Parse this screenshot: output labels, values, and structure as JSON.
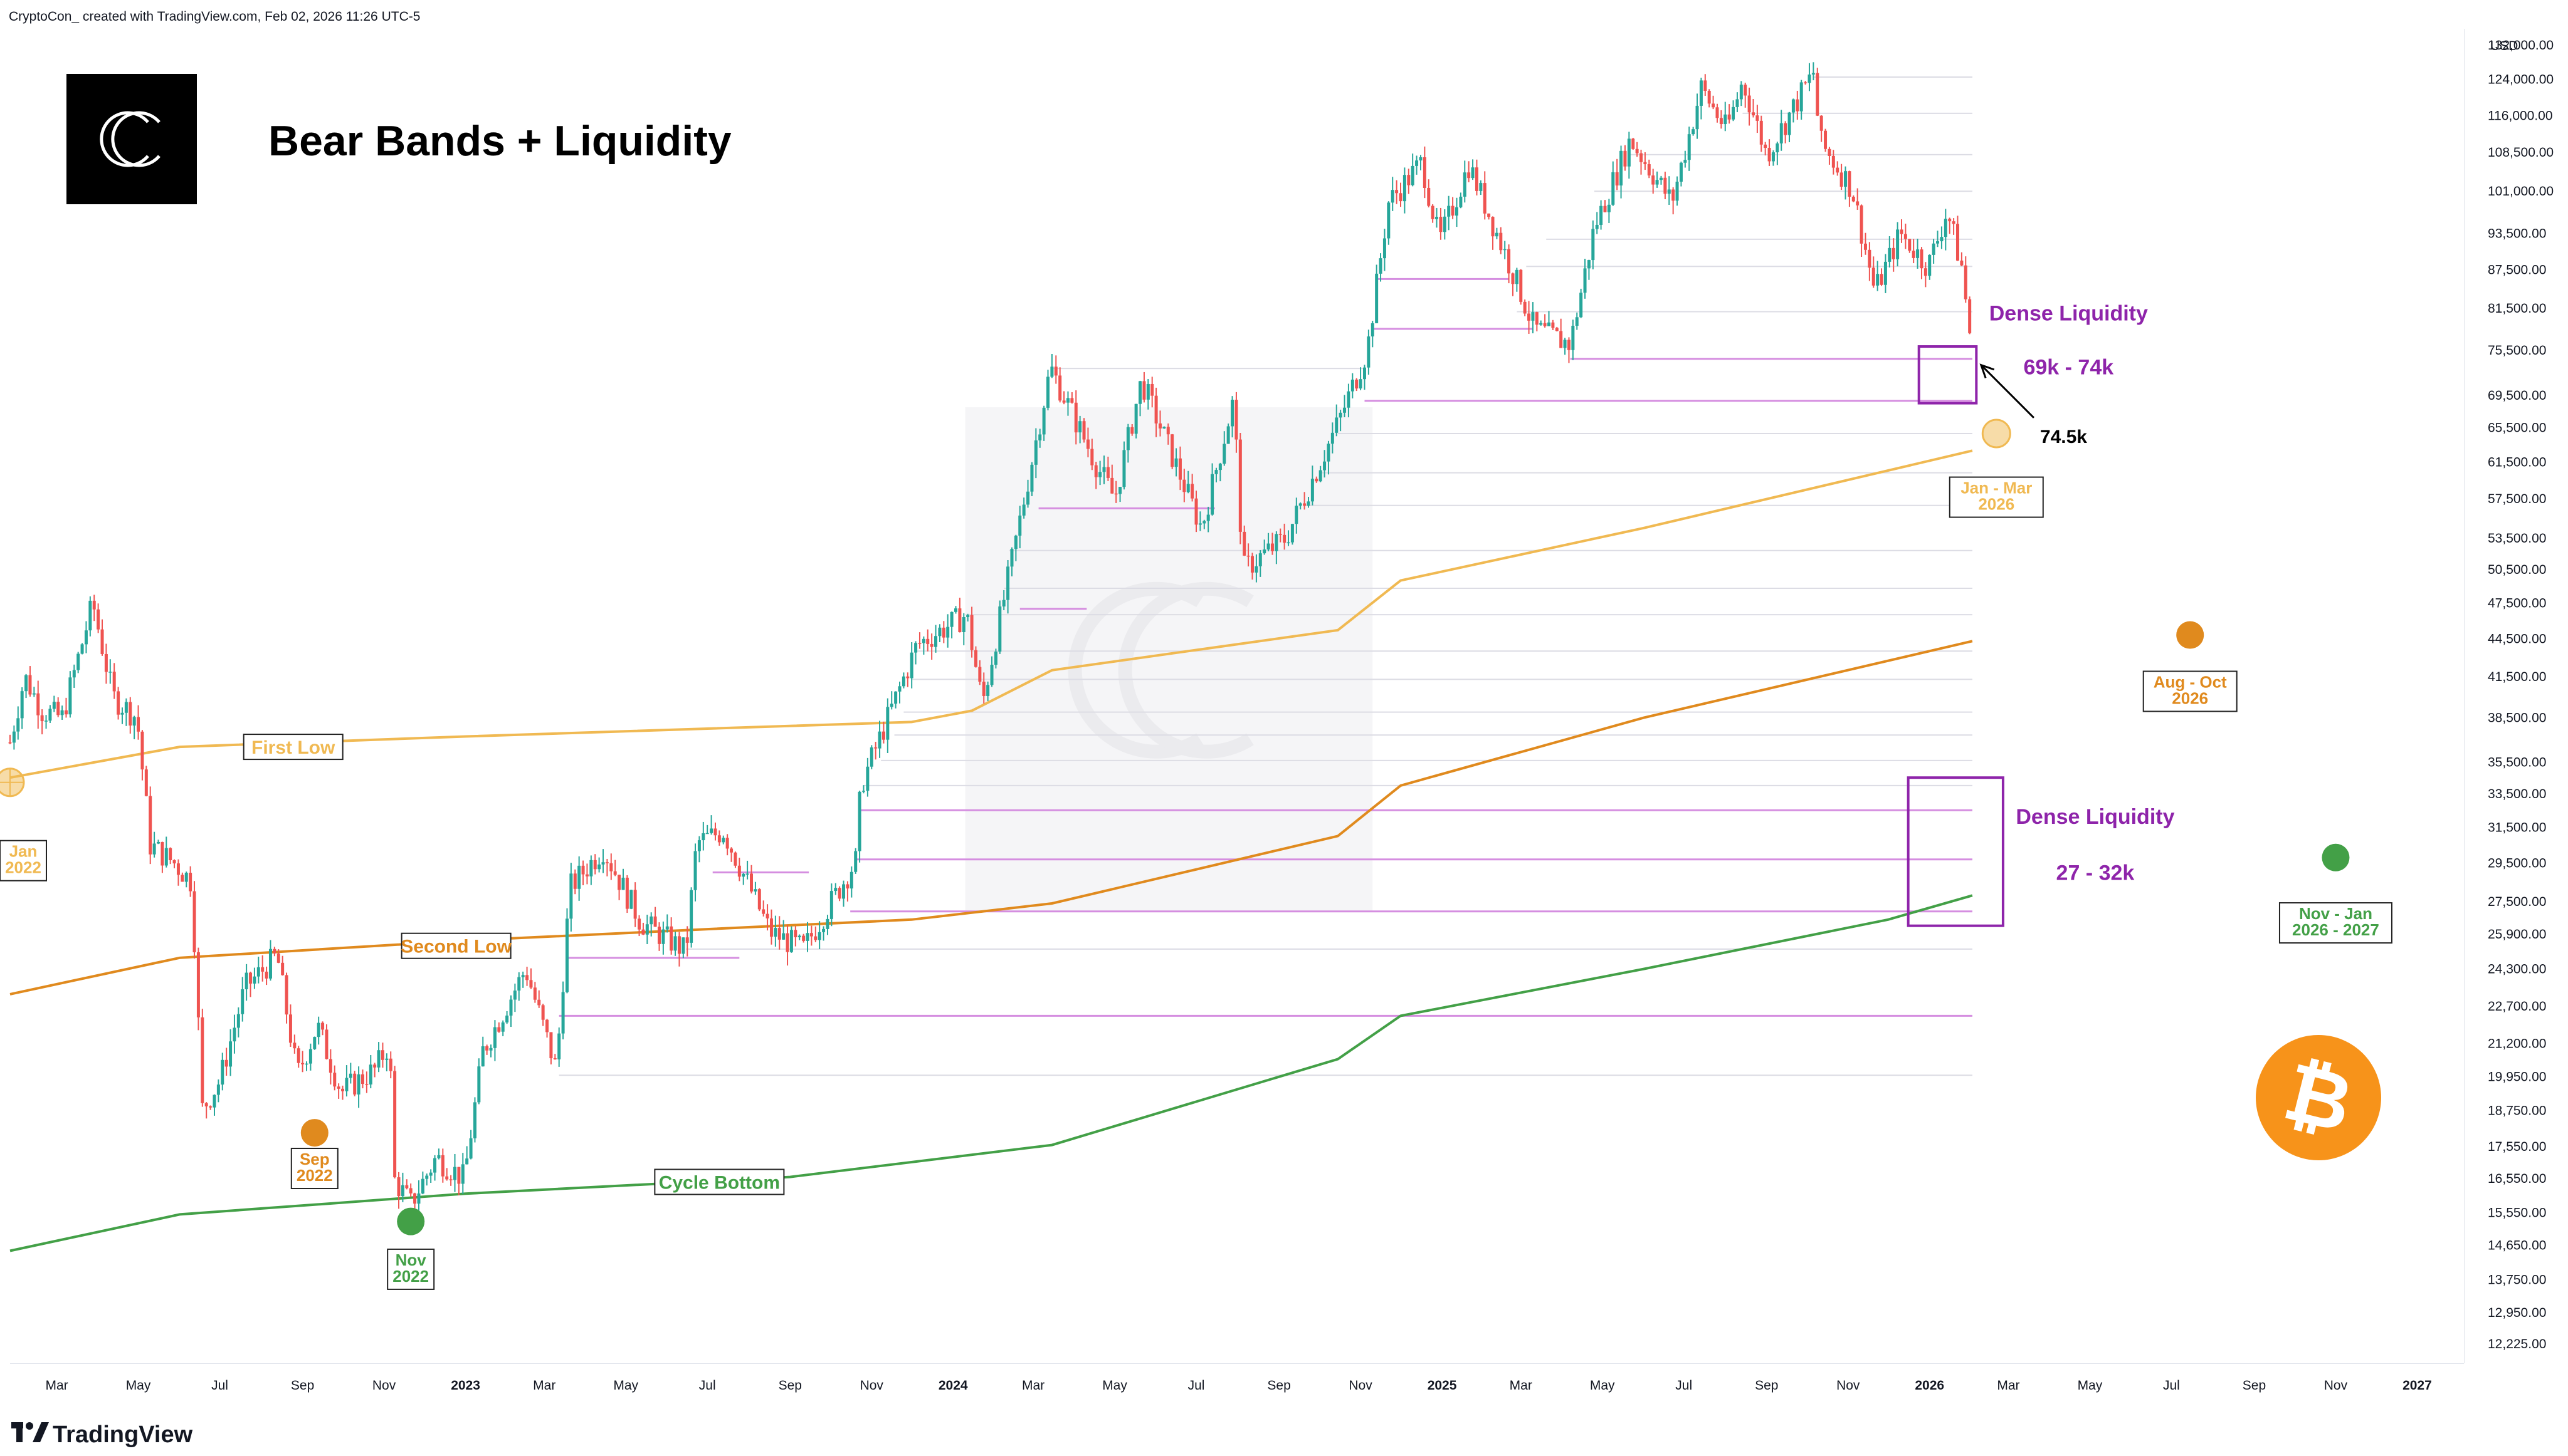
{
  "credit": "CryptoCon_ created with TradingView.com, Feb 02, 2026 11:26 UTC-5",
  "title": "Bear Bands + Liquidity",
  "brand": "TradingView",
  "currency": "USD",
  "colors": {
    "up": "#26a69a",
    "down": "#ef5350",
    "first_low": "#f0b952",
    "second_low": "#e08a1e",
    "cycle_bottom": "#43a047",
    "liquidity": "#d58ee0",
    "dense_box": "#8e24aa",
    "bitcoin": "#f7931a"
  },
  "chart_data": {
    "type": "line",
    "title": "Bear Bands + Liquidity",
    "price_scale": "log",
    "y_ticks": [
      12225,
      12950,
      13750,
      14650,
      15550,
      16550,
      17550,
      18750,
      19950,
      21200,
      22700,
      24300,
      25900,
      27500,
      29500,
      31500,
      33500,
      35500,
      38500,
      41500,
      44500,
      47500,
      50500,
      53500,
      57500,
      61500,
      65500,
      69500,
      75500,
      81500,
      87500,
      93500,
      101000,
      108500,
      116000,
      124000,
      132000
    ],
    "y_tick_labels": [
      "12,225.00",
      "12,950.00",
      "13,750.00",
      "14,650.00",
      "15,550.00",
      "16,550.00",
      "17,550.00",
      "18,750.00",
      "19,950.00",
      "21,200.00",
      "22,700.00",
      "24,300.00",
      "25,900.00",
      "27,500.00",
      "29,500.00",
      "31,500.00",
      "33,500.00",
      "35,500.00",
      "38,500.00",
      "41,500.00",
      "44,500.00",
      "47,500.00",
      "50,500.00",
      "53,500.00",
      "57,500.00",
      "61,500.00",
      "65,500.00",
      "69,500.00",
      "75,500.00",
      "81,500.00",
      "87,500.00",
      "93,500.00",
      "101,000.00",
      "108,500.00",
      "116,000.00",
      "124,000.00",
      "132,000.00"
    ],
    "ylim": [
      11800,
      136000
    ],
    "x_range": [
      "2022-01-25",
      "2027-02-05"
    ],
    "x_ticks": [
      {
        "date": "2022-03-01",
        "label": "Mar"
      },
      {
        "date": "2022-05-01",
        "label": "May"
      },
      {
        "date": "2022-07-01",
        "label": "Jul"
      },
      {
        "date": "2022-09-01",
        "label": "Sep"
      },
      {
        "date": "2022-11-01",
        "label": "Nov"
      },
      {
        "date": "2023-01-01",
        "label": "2023",
        "year": true
      },
      {
        "date": "2023-03-01",
        "label": "Mar"
      },
      {
        "date": "2023-05-01",
        "label": "May"
      },
      {
        "date": "2023-07-01",
        "label": "Jul"
      },
      {
        "date": "2023-09-01",
        "label": "Sep"
      },
      {
        "date": "2023-11-01",
        "label": "Nov"
      },
      {
        "date": "2024-01-01",
        "label": "2024",
        "year": true
      },
      {
        "date": "2024-03-01",
        "label": "Mar"
      },
      {
        "date": "2024-05-01",
        "label": "May"
      },
      {
        "date": "2024-07-01",
        "label": "Jul"
      },
      {
        "date": "2024-09-01",
        "label": "Sep"
      },
      {
        "date": "2024-11-01",
        "label": "Nov"
      },
      {
        "date": "2025-01-01",
        "label": "2025",
        "year": true
      },
      {
        "date": "2025-03-01",
        "label": "Mar"
      },
      {
        "date": "2025-05-01",
        "label": "May"
      },
      {
        "date": "2025-07-01",
        "label": "Jul"
      },
      {
        "date": "2025-09-01",
        "label": "Sep"
      },
      {
        "date": "2025-11-01",
        "label": "Nov"
      },
      {
        "date": "2026-01-01",
        "label": "2026",
        "year": true
      },
      {
        "date": "2026-03-01",
        "label": "Mar"
      },
      {
        "date": "2026-05-01",
        "label": "May"
      },
      {
        "date": "2026-07-01",
        "label": "Jul"
      },
      {
        "date": "2026-09-01",
        "label": "Sep"
      },
      {
        "date": "2026-11-01",
        "label": "Nov"
      },
      {
        "date": "2027-01-01",
        "label": "2027",
        "year": true
      }
    ],
    "price_series": {
      "name": "BTC",
      "points": [
        [
          "2022-01-25",
          36800
        ],
        [
          "2022-02-05",
          41500
        ],
        [
          "2022-02-18",
          39000
        ],
        [
          "2022-03-05",
          38500
        ],
        [
          "2022-03-28",
          47500
        ],
        [
          "2022-04-12",
          40000
        ],
        [
          "2022-04-30",
          38500
        ],
        [
          "2022-05-10",
          30500
        ],
        [
          "2022-05-28",
          29500
        ],
        [
          "2022-06-10",
          28500
        ],
        [
          "2022-06-18",
          18800
        ],
        [
          "2022-07-01",
          19800
        ],
        [
          "2022-07-20",
          23500
        ],
        [
          "2022-08-13",
          24900
        ],
        [
          "2022-08-28",
          20000
        ],
        [
          "2022-09-12",
          21900
        ],
        [
          "2022-09-30",
          19400
        ],
        [
          "2022-10-25",
          20200
        ],
        [
          "2022-11-05",
          21200
        ],
        [
          "2022-11-09",
          16500
        ],
        [
          "2022-11-21",
          15800
        ],
        [
          "2022-12-10",
          17200
        ],
        [
          "2022-12-31",
          16550
        ],
        [
          "2023-01-14",
          20900
        ],
        [
          "2023-02-15",
          24300
        ],
        [
          "2023-03-10",
          20200
        ],
        [
          "2023-03-20",
          28200
        ],
        [
          "2023-04-14",
          30300
        ],
        [
          "2023-05-12",
          26500
        ],
        [
          "2023-06-15",
          25100
        ],
        [
          "2023-06-23",
          30600
        ],
        [
          "2023-07-13",
          31300
        ],
        [
          "2023-08-17",
          26000
        ],
        [
          "2023-09-11",
          25200
        ],
        [
          "2023-10-20",
          29600
        ],
        [
          "2023-10-24",
          34000
        ],
        [
          "2023-12-05",
          44000
        ],
        [
          "2024-01-11",
          46500
        ],
        [
          "2024-01-23",
          39500
        ],
        [
          "2024-02-15",
          52000
        ],
        [
          "2024-03-14",
          73100
        ],
        [
          "2024-04-17",
          61300
        ],
        [
          "2024-05-01",
          57500
        ],
        [
          "2024-05-21",
          71400
        ],
        [
          "2024-07-05",
          54500
        ],
        [
          "2024-07-29",
          69000
        ],
        [
          "2024-08-05",
          50500
        ],
        [
          "2024-09-06",
          53500
        ],
        [
          "2024-10-15",
          66000
        ],
        [
          "2024-11-06",
          75500
        ],
        [
          "2024-11-22",
          99000
        ],
        [
          "2024-12-17",
          106500
        ],
        [
          "2024-12-30",
          92000
        ],
        [
          "2025-01-21",
          106000
        ],
        [
          "2025-02-25",
          86000
        ],
        [
          "2025-03-11",
          78500
        ],
        [
          "2025-04-07",
          76300
        ],
        [
          "2025-04-25",
          94500
        ],
        [
          "2025-05-22",
          111000
        ],
        [
          "2025-06-22",
          99000
        ],
        [
          "2025-07-14",
          122000
        ],
        [
          "2025-08-02",
          113000
        ],
        [
          "2025-08-14",
          123500
        ],
        [
          "2025-09-01",
          108000
        ],
        [
          "2025-10-06",
          125500
        ],
        [
          "2025-10-11",
          110500
        ],
        [
          "2025-11-04",
          101500
        ],
        [
          "2025-11-21",
          84000
        ],
        [
          "2025-12-10",
          93500
        ],
        [
          "2025-12-31",
          88000
        ],
        [
          "2026-01-14",
          97500
        ],
        [
          "2026-01-25",
          88000
        ],
        [
          "2026-02-02",
          75000
        ]
      ]
    },
    "bands": [
      {
        "name": "First Low",
        "points": [
          [
            "2022-01-25",
            34500
          ],
          [
            "2022-06-01",
            36500
          ],
          [
            "2023-01-01",
            37200
          ],
          [
            "2023-12-01",
            38200
          ],
          [
            "2024-01-15",
            39000
          ],
          [
            "2024-03-15",
            42000
          ],
          [
            "2024-10-15",
            45200
          ],
          [
            "2024-12-01",
            49500
          ],
          [
            "2025-06-01",
            54500
          ],
          [
            "2026-02-02",
            62800
          ]
        ]
      },
      {
        "name": "Second Low",
        "points": [
          [
            "2022-01-25",
            23200
          ],
          [
            "2022-06-01",
            24800
          ],
          [
            "2023-01-01",
            25600
          ],
          [
            "2023-12-01",
            26600
          ],
          [
            "2024-03-15",
            27400
          ],
          [
            "2024-10-15",
            31000
          ],
          [
            "2024-12-01",
            34000
          ],
          [
            "2025-06-01",
            38500
          ],
          [
            "2026-02-02",
            44300
          ]
        ]
      },
      {
        "name": "Cycle Bottom",
        "points": [
          [
            "2022-01-25",
            14500
          ],
          [
            "2022-06-01",
            15500
          ],
          [
            "2023-01-01",
            16100
          ],
          [
            "2023-09-01",
            16600
          ],
          [
            "2024-03-15",
            17600
          ],
          [
            "2024-10-15",
            20600
          ],
          [
            "2024-12-01",
            22300
          ],
          [
            "2025-06-01",
            24300
          ],
          [
            "2025-12-01",
            26600
          ],
          [
            "2026-02-02",
            27800
          ]
        ]
      }
    ],
    "liquidity_levels": [
      {
        "price": 74300,
        "from": "2025-04-07",
        "to": "2026-02-02",
        "strong": true
      },
      {
        "price": 68800,
        "from": "2024-11-04",
        "to": "2026-02-02",
        "strong": true
      },
      {
        "price": 32500,
        "from": "2023-10-24",
        "to": "2026-02-02",
        "strong": true
      },
      {
        "price": 29700,
        "from": "2023-10-20",
        "to": "2026-02-02",
        "strong": true
      },
      {
        "price": 27000,
        "from": "2023-10-16",
        "to": "2026-02-02",
        "strong": true
      },
      {
        "price": 22300,
        "from": "2023-03-12",
        "to": "2026-02-02",
        "strong": true
      },
      {
        "price": 86000,
        "from": "2024-11-12",
        "to": "2025-02-20",
        "strong": true
      },
      {
        "price": 78500,
        "from": "2024-11-10",
        "to": "2025-03-10",
        "strong": true
      },
      {
        "price": 56500,
        "from": "2024-03-05",
        "to": "2024-07-15",
        "strong": true
      },
      {
        "price": 47000,
        "from": "2024-02-20",
        "to": "2024-04-10",
        "strong": true
      },
      {
        "price": 29000,
        "from": "2023-07-05",
        "to": "2023-09-15",
        "strong": true
      },
      {
        "price": 24800,
        "from": "2023-03-18",
        "to": "2023-07-25",
        "strong": true
      },
      {
        "price": 124500,
        "from": "2025-10-06",
        "to": "2026-02-02"
      },
      {
        "price": 116500,
        "from": "2025-08-14",
        "to": "2026-02-02"
      },
      {
        "price": 108000,
        "from": "2025-05-22",
        "to": "2026-02-02"
      },
      {
        "price": 101000,
        "from": "2025-04-25",
        "to": "2026-02-02"
      },
      {
        "price": 92500,
        "from": "2025-03-20",
        "to": "2026-02-02"
      },
      {
        "price": 88000,
        "from": "2025-03-05",
        "to": "2026-02-02"
      },
      {
        "price": 81000,
        "from": "2025-02-26",
        "to": "2026-02-02"
      },
      {
        "price": 73000,
        "from": "2024-03-14",
        "to": "2024-11-05"
      },
      {
        "price": 64800,
        "from": "2024-10-15",
        "to": "2026-02-02"
      },
      {
        "price": 60300,
        "from": "2024-10-01",
        "to": "2026-02-02"
      },
      {
        "price": 56800,
        "from": "2024-09-20",
        "to": "2026-02-02"
      },
      {
        "price": 52300,
        "from": "2024-02-12",
        "to": "2026-02-02"
      },
      {
        "price": 48800,
        "from": "2024-02-08",
        "to": "2026-02-02"
      },
      {
        "price": 46500,
        "from": "2024-01-10",
        "to": "2026-02-02"
      },
      {
        "price": 43500,
        "from": "2023-12-05",
        "to": "2026-02-02"
      },
      {
        "price": 41300,
        "from": "2023-12-01",
        "to": "2026-02-02"
      },
      {
        "price": 38900,
        "from": "2023-11-25",
        "to": "2026-02-02"
      },
      {
        "price": 37300,
        "from": "2023-11-18",
        "to": "2026-02-02"
      },
      {
        "price": 35600,
        "from": "2023-11-08",
        "to": "2026-02-02"
      },
      {
        "price": 34000,
        "from": "2023-10-26",
        "to": "2026-02-02"
      },
      {
        "price": 25200,
        "from": "2023-06-15",
        "to": "2026-02-02"
      },
      {
        "price": 20000,
        "from": "2023-03-12",
        "to": "2026-02-02"
      }
    ]
  },
  "annotations": {
    "band_labels": [
      {
        "text": "First Low",
        "date": "2022-08-25",
        "price": 36500,
        "band": "first_low"
      },
      {
        "text": "Second Low",
        "date": "2022-12-25",
        "price": 25350,
        "band": "second_low"
      },
      {
        "text": "Cycle Bottom",
        "date": "2023-07-10",
        "price": 16450,
        "band": "cycle_bottom"
      }
    ],
    "cycle_markers": [
      {
        "date": "2022-01-25",
        "price": 34200,
        "color": "first_low",
        "faded": true,
        "crossed": true,
        "label": [
          "Jan",
          "2022"
        ],
        "label_price": 29700,
        "label_side": "left"
      },
      {
        "date": "2022-09-10",
        "price": 18000,
        "color": "second_low",
        "label": [
          "Sep",
          "2022"
        ],
        "label_price": 16900
      },
      {
        "date": "2022-11-21",
        "price": 15300,
        "color": "cycle_bottom",
        "label": [
          "Nov",
          "2022"
        ],
        "label_price": 14050
      },
      {
        "date": "2026-02-20",
        "price": 64800,
        "color": "first_low",
        "faded": true,
        "label": [
          "Jan - Mar",
          "2026"
        ],
        "label_price": 57800
      },
      {
        "date": "2026-07-15",
        "price": 44800,
        "color": "second_low",
        "label": [
          "Aug - Oct",
          "2026"
        ],
        "label_price": 40500
      },
      {
        "date": "2026-11-01",
        "price": 29800,
        "color": "cycle_bottom",
        "label": [
          "Nov - Jan",
          "2026 - 2027"
        ],
        "label_price": 26500
      }
    ],
    "dense_boxes": [
      {
        "title": "Dense Liquidity",
        "range_label": "69k - 74k",
        "from": "2025-12-24",
        "to": "2026-02-05",
        "price_low": 68500,
        "price_high": 76000,
        "text_date": "2026-04-15",
        "title_price": 79700,
        "range_price": 72200
      },
      {
        "title": "Dense Liquidity",
        "range_label": "27 - 32k",
        "from": "2025-12-16",
        "to": "2026-02-25",
        "price_low": 26300,
        "price_high": 34500,
        "text_date": "2026-05-05",
        "title_price": 31700,
        "range_price": 28600
      }
    ],
    "price_callout": {
      "text": "74.5k",
      "point_date": "2026-02-02",
      "point_price": 73800,
      "tail_date": "2026-03-20",
      "tail_price": 66700
    },
    "watermark": "CC"
  }
}
